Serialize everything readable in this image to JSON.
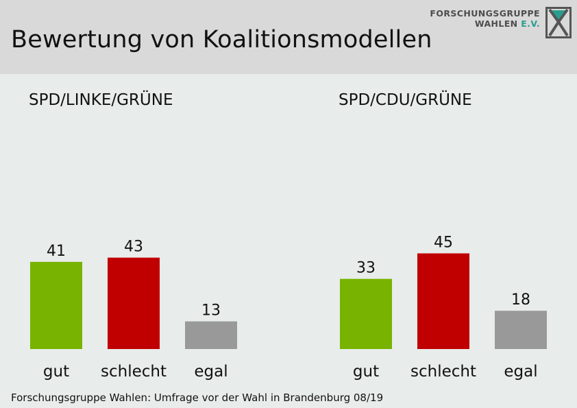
{
  "header": {
    "title": "Bewertung von Koalitionsmodellen",
    "logo_line1": "FORSCHUNGSGRUPPE",
    "logo_line2_a": "WAHLEN ",
    "logo_line2_b": "E.V."
  },
  "footer": {
    "source": "Forschungsgruppe Wahlen: Umfrage vor der Wahl in Brandenburg 08/19"
  },
  "colors": {
    "gut": "#77b300",
    "schlecht": "#c00000",
    "egal": "#999999",
    "header_bg": "#d9d9d9",
    "body_bg": "#e8ecea"
  },
  "chart_data": [
    {
      "type": "bar",
      "title": "SPD/LINKE/GRÜNE",
      "categories": [
        "gut",
        "schlecht",
        "egal"
      ],
      "values": [
        41,
        43,
        13
      ],
      "ylim": [
        0,
        50
      ],
      "grid": false
    },
    {
      "type": "bar",
      "title": "SPD/CDU/GRÜNE",
      "categories": [
        "gut",
        "schlecht",
        "egal"
      ],
      "values": [
        33,
        45,
        18
      ],
      "ylim": [
        0,
        50
      ],
      "grid": false
    }
  ]
}
